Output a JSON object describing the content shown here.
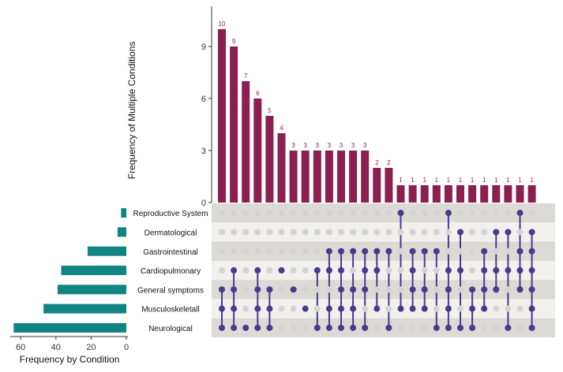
{
  "chart_data": {
    "type": "upset",
    "colors": {
      "intersection_bar": "#8b1f4f",
      "set_bar": "#118484",
      "dot_active": "#4a3a8c",
      "dot_inactive": "#d4d4d4",
      "row_band_dark": "#dcdad4",
      "row_band_light": "#f1f0ec"
    },
    "intersection_axis": {
      "ylabel": "Frequency of Multiple Conditions",
      "ylim": [
        0,
        11
      ],
      "ticks": [
        0,
        3,
        6,
        9
      ]
    },
    "set_axis": {
      "xlabel": "Frequency by Condition",
      "xlim": [
        0,
        65
      ],
      "ticks": [
        60,
        40,
        20,
        0
      ]
    },
    "sets": [
      {
        "name": "Reproductive System",
        "size": 3
      },
      {
        "name": "Dermatological",
        "size": 5
      },
      {
        "name": "Gastrointestinal",
        "size": 22
      },
      {
        "name": "Cardiopulmonary",
        "size": 37
      },
      {
        "name": "General symptoms",
        "size": 39
      },
      {
        "name": "Musculoskeletall",
        "size": 47
      },
      {
        "name": "Neurological",
        "size": 64
      }
    ],
    "intersections": [
      {
        "value": 10,
        "label": "10",
        "sets": [
          "General symptoms",
          "Musculoskeletall",
          "Neurological"
        ]
      },
      {
        "value": 9,
        "label": "9",
        "sets": [
          "Cardiopulmonary",
          "General symptoms",
          "Musculoskeletall",
          "Neurological"
        ]
      },
      {
        "value": 7,
        "label": "7",
        "sets": [
          "Neurological"
        ]
      },
      {
        "value": 6,
        "label": "6",
        "sets": [
          "Cardiopulmonary",
          "General symptoms",
          "Musculoskeletall",
          "Neurological"
        ]
      },
      {
        "value": 5,
        "label": "5",
        "sets": [
          "General symptoms",
          "Musculoskeletall",
          "Neurological"
        ]
      },
      {
        "value": 4,
        "label": "4",
        "sets": [
          "Cardiopulmonary"
        ]
      },
      {
        "value": 3,
        "label": "3",
        "sets": [
          "General symptoms"
        ]
      },
      {
        "value": 3,
        "label": "3",
        "sets": [
          "Musculoskeletall"
        ]
      },
      {
        "value": 3,
        "label": "3",
        "sets": [
          "Cardiopulmonary",
          "Neurological"
        ]
      },
      {
        "value": 3,
        "label": "3",
        "sets": [
          "Gastrointestinal",
          "Cardiopulmonary",
          "Musculoskeletall",
          "Neurological"
        ]
      },
      {
        "value": 3,
        "label": "3",
        "sets": [
          "Gastrointestinal",
          "Cardiopulmonary",
          "General symptoms",
          "Musculoskeletall",
          "Neurological"
        ]
      },
      {
        "value": 3,
        "label": "3",
        "sets": [
          "Gastrointestinal",
          "General symptoms",
          "Musculoskeletall",
          "Neurological"
        ]
      },
      {
        "value": 3,
        "label": "3",
        "sets": [
          "Gastrointestinal",
          "Cardiopulmonary",
          "General symptoms",
          "Neurological"
        ]
      },
      {
        "value": 2,
        "label": "2",
        "sets": [
          "Gastrointestinal",
          "Cardiopulmonary",
          "Musculoskeletall"
        ]
      },
      {
        "value": 2,
        "label": "2",
        "sets": [
          "Gastrointestinal",
          "Neurological"
        ]
      },
      {
        "value": 1,
        "label": "1",
        "sets": [
          "Reproductive System",
          "Musculoskeletall"
        ]
      },
      {
        "value": 1,
        "label": "1",
        "sets": [
          "Gastrointestinal",
          "Cardiopulmonary",
          "General symptoms",
          "Musculoskeletall"
        ]
      },
      {
        "value": 1,
        "label": "1",
        "sets": [
          "Gastrointestinal",
          "General symptoms",
          "Musculoskeletall"
        ]
      },
      {
        "value": 1,
        "label": "1",
        "sets": [
          "Gastrointestinal",
          "Neurological"
        ]
      },
      {
        "value": 1,
        "label": "1",
        "sets": [
          "Reproductive System",
          "Cardiopulmonary",
          "General symptoms",
          "Musculoskeletall",
          "Neurological"
        ]
      },
      {
        "value": 1,
        "label": "1",
        "sets": [
          "Dermatological",
          "Cardiopulmonary",
          "Neurological"
        ]
      },
      {
        "value": 1,
        "label": "1",
        "sets": [
          "General symptoms",
          "Musculoskeletall",
          "Neurological"
        ]
      },
      {
        "value": 1,
        "label": "1",
        "sets": [
          "Gastrointestinal",
          "Cardiopulmonary",
          "General symptoms",
          "Musculoskeletall"
        ]
      },
      {
        "value": 1,
        "label": "1",
        "sets": [
          "Dermatological",
          "Cardiopulmonary",
          "General symptoms"
        ]
      },
      {
        "value": 1,
        "label": "1",
        "sets": [
          "Dermatological",
          "Cardiopulmonary",
          "Neurological"
        ]
      },
      {
        "value": 1,
        "label": "1",
        "sets": [
          "Reproductive System",
          "Gastrointestinal",
          "Cardiopulmonary",
          "General symptoms"
        ]
      },
      {
        "value": 1,
        "label": "1",
        "sets": [
          "Dermatological",
          "Gastrointestinal",
          "Cardiopulmonary",
          "General symptoms",
          "Musculoskeletall",
          "Neurological"
        ]
      }
    ]
  }
}
